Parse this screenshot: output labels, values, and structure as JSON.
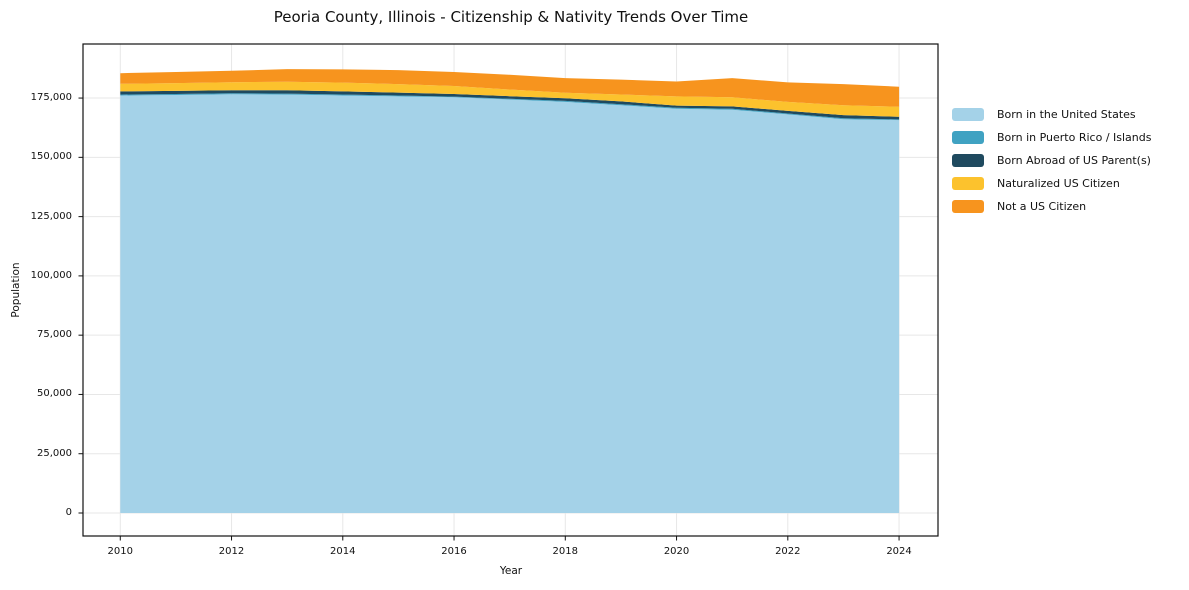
{
  "chart_data": {
    "type": "area",
    "title": "Peoria County, Illinois - Citizenship & Nativity Trends Over Time",
    "xlabel": "Year",
    "ylabel": "Population",
    "stacked": true,
    "grid": true,
    "legend_position": "right-outside",
    "x": [
      2010,
      2011,
      2012,
      2013,
      2014,
      2015,
      2016,
      2017,
      2018,
      2019,
      2020,
      2021,
      2022,
      2023,
      2024
    ],
    "series": [
      {
        "name": "Born in the United States",
        "color": "#a4d2e8",
        "values": [
          176100,
          176300,
          176600,
          176500,
          176100,
          175700,
          175300,
          174400,
          173400,
          172000,
          170500,
          170100,
          168100,
          166100,
          165700
        ]
      },
      {
        "name": "Born in Puerto Rico / Islands",
        "color": "#40a2c2",
        "values": [
          400,
          400,
          400,
          400,
          400,
          400,
          300,
          300,
          400,
          400,
          400,
          400,
          400,
          400,
          300
        ]
      },
      {
        "name": "Born Abroad of US Parent(s)",
        "color": "#1f4a5f",
        "values": [
          1300,
          1300,
          1300,
          1400,
          1300,
          1200,
          1100,
          1100,
          1100,
          1200,
          900,
          1000,
          1100,
          1300,
          1100
        ]
      },
      {
        "name": "Naturalized US Citizen",
        "color": "#fcc22d",
        "values": [
          3200,
          3300,
          3400,
          3600,
          3700,
          3600,
          3400,
          2800,
          2300,
          2900,
          3900,
          3800,
          3800,
          4200,
          4200
        ]
      },
      {
        "name": "Not a US Citizen",
        "color": "#f7941e",
        "values": [
          4500,
          4700,
          4800,
          5300,
          5600,
          5900,
          5900,
          6200,
          6200,
          6300,
          6300,
          8100,
          8200,
          8900,
          8500
        ]
      }
    ],
    "xticks": [
      {
        "value": 2010,
        "label": "2010"
      },
      {
        "value": 2012,
        "label": "2012"
      },
      {
        "value": 2014,
        "label": "2014"
      },
      {
        "value": 2016,
        "label": "2016"
      },
      {
        "value": 2018,
        "label": "2018"
      },
      {
        "value": 2020,
        "label": "2020"
      },
      {
        "value": 2022,
        "label": "2022"
      },
      {
        "value": 2024,
        "label": "2024"
      }
    ],
    "yticks": [
      {
        "value": 0,
        "label": "0"
      },
      {
        "value": 25000,
        "label": "25,000"
      },
      {
        "value": 50000,
        "label": "50,000"
      },
      {
        "value": 75000,
        "label": "75,000"
      },
      {
        "value": 100000,
        "label": "100,000"
      },
      {
        "value": 125000,
        "label": "125,000"
      },
      {
        "value": 150000,
        "label": "150,000"
      },
      {
        "value": 175000,
        "label": "175,000"
      }
    ],
    "xlim": [
      2009.33,
      2024.7
    ],
    "ylim": [
      -9700,
      197800
    ]
  }
}
